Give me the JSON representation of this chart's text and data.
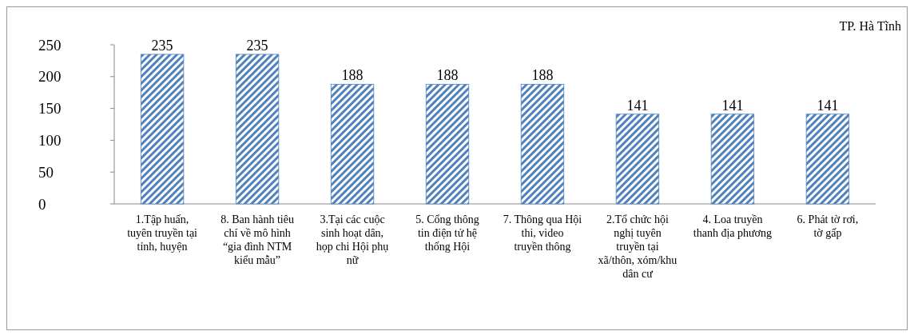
{
  "chart_data": {
    "type": "bar",
    "title": "TP. Hà Tĩnh",
    "categories": [
      "1.Tập huấn, tuyên truyền tại tỉnh, huyện",
      "8. Ban hành tiêu chí về mô hình “gia đình NTM kiểu mẫu”",
      "3.Tại các cuộc sinh hoạt dân, họp chi Hội phụ nữ",
      "5. Cổng thông tin điện tử hệ thống Hội",
      "7. Thông qua Hội thi, video truyền thông",
      "2.Tổ chức hội nghị tuyên truyền tại xã/thôn, xóm/khu dân cư",
      "4. Loa truyền thanh địa phương",
      "6. Phát tờ rơi, tờ gấp"
    ],
    "values": [
      235,
      235,
      188,
      188,
      188,
      141,
      141,
      141
    ],
    "color": "#4f81bd",
    "ylim": [
      0,
      250
    ],
    "yticks": [
      0,
      50,
      100,
      150,
      200,
      250
    ],
    "data_labels": true
  }
}
